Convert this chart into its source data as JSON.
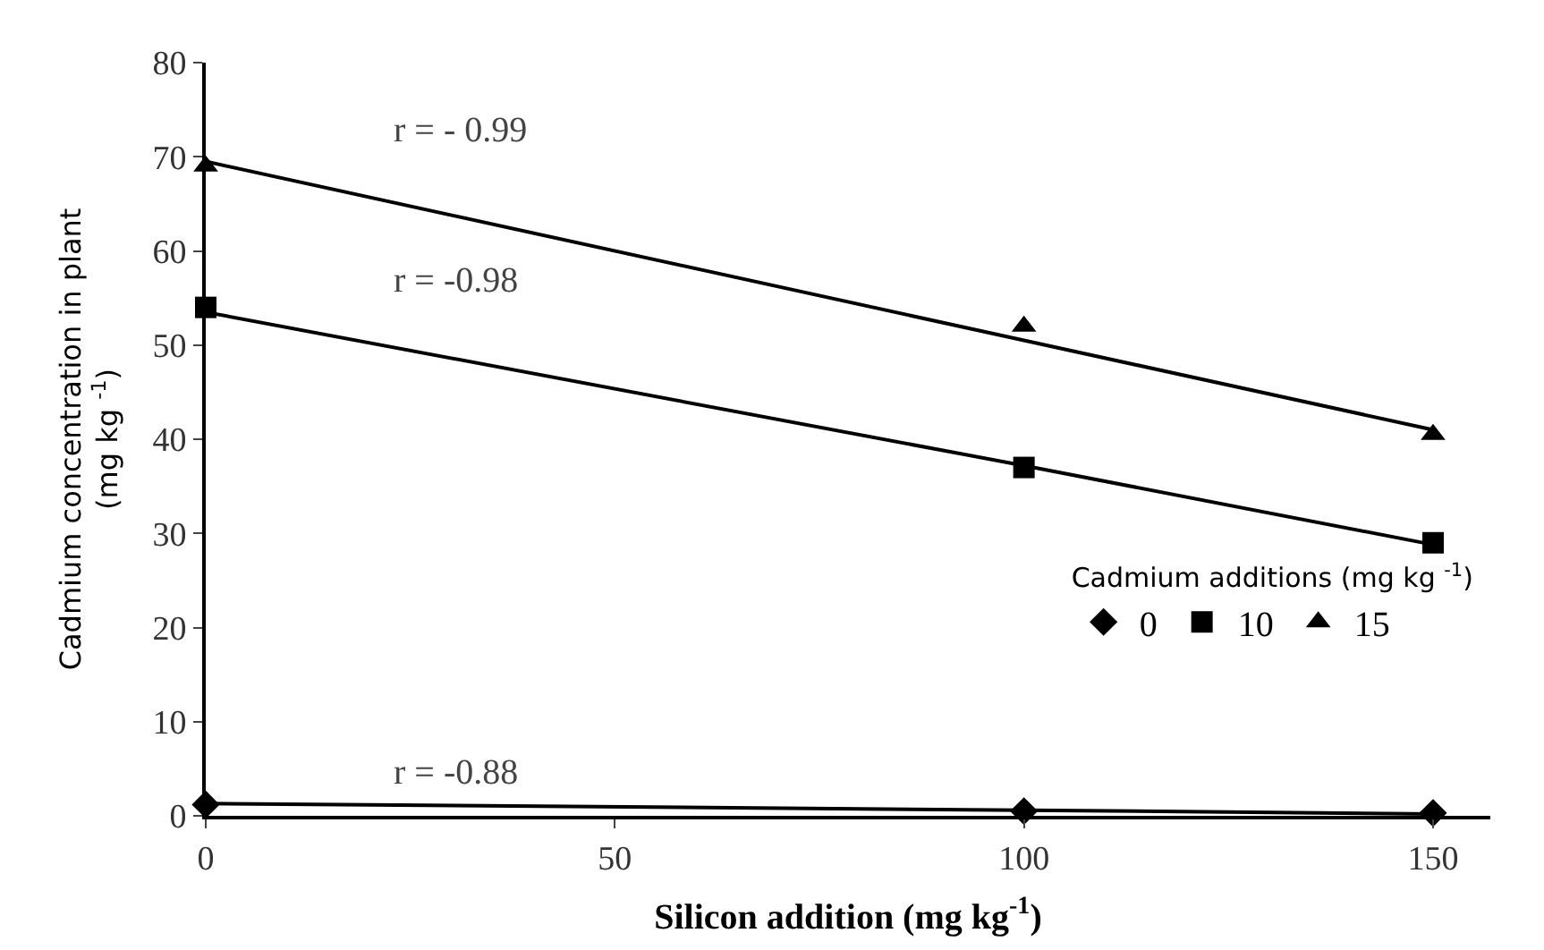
{
  "chart_data": {
    "type": "scatter",
    "xlabel": "Silicon addition (mg kg$^{-1}$)",
    "ylabel": "Cadmium concentration in plant\n(mg kg $^{-1}$)",
    "legend_title": "Cadmium additions (mg kg $^{-1}$)",
    "x": [
      0,
      100,
      150
    ],
    "series": [
      {
        "name": "0",
        "color": "#000000",
        "marker": "diamond",
        "values": [
          1.2,
          0.5,
          0.3
        ]
      },
      {
        "name": "10",
        "color": "#000000",
        "marker": "square",
        "values": [
          54,
          37,
          29
        ]
      },
      {
        "name": "15",
        "color": "#000000",
        "marker": "triangle",
        "values": [
          69,
          52,
          40.5
        ]
      },
      {
        "type": "line",
        "color": "#000000",
        "values": [
          1.3,
          0.6,
          0.2
        ]
      },
      {
        "type": "line",
        "color": "#000000",
        "values": [
          53.5,
          37.2,
          28.8
        ]
      },
      {
        "type": "line",
        "color": "#000000",
        "values": [
          69.5,
          50.5,
          41
        ]
      }
    ],
    "annotations": [
      "r = -0.88",
      "r = -0.98",
      "r = - 0.99"
    ],
    "xlim": [
      0,
      157
    ],
    "xticks": [
      0,
      50,
      100,
      150
    ],
    "ylim": [
      0,
      80
    ],
    "yticks": [
      0,
      10,
      20,
      30,
      40,
      50,
      60,
      70,
      80
    ],
    "legend": "right"
  }
}
